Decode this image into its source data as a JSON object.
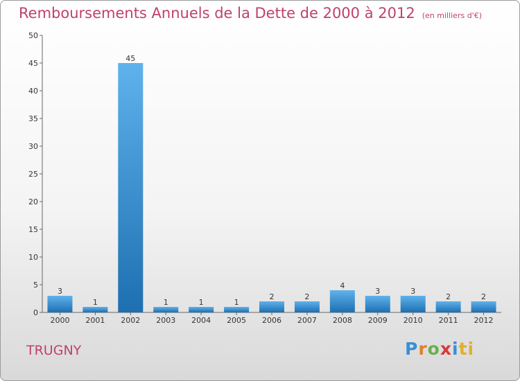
{
  "header": {
    "title": "Remboursements Annuels de la Dette de 2000 à 2012",
    "subtitle": "(en milliers d'€)"
  },
  "footer": {
    "commune": "TRUGNY",
    "logo_text": "Proxiti",
    "logo_letters": [
      "P",
      "r",
      "o",
      "x",
      "i",
      "ti"
    ]
  },
  "colors": {
    "title": "#c0406d",
    "bar_top": "#5fb2ec",
    "bar_bottom": "#1e6fb0"
  },
  "chart_data": {
    "type": "bar",
    "title": "Remboursements Annuels de la Dette de 2000 à 2012",
    "subtitle": "(en milliers d'€)",
    "categories": [
      "2000",
      "2001",
      "2002",
      "2003",
      "2004",
      "2005",
      "2006",
      "2007",
      "2008",
      "2009",
      "2010",
      "2011",
      "2012"
    ],
    "values": [
      3,
      1,
      45,
      1,
      1,
      1,
      2,
      2,
      4,
      3,
      3,
      2,
      2
    ],
    "ylim": [
      0,
      50
    ],
    "yticks": [
      0,
      5,
      10,
      15,
      20,
      25,
      30,
      35,
      40,
      45,
      50
    ],
    "grid": false,
    "legend": "none"
  }
}
